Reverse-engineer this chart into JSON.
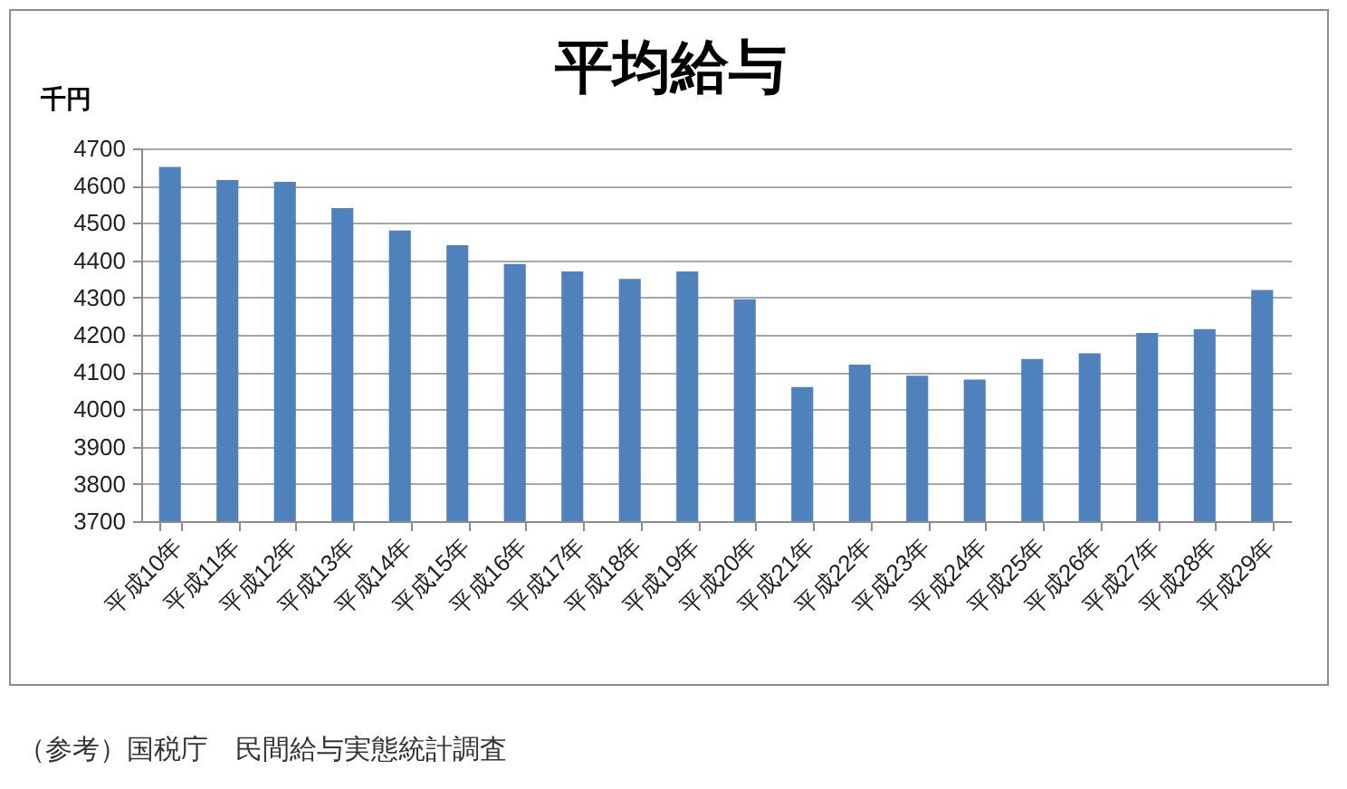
{
  "chart_data": {
    "type": "bar",
    "title": "平均給与",
    "ylabel": "千円",
    "categories": [
      "平成10年",
      "平成11年",
      "平成12年",
      "平成13年",
      "平成14年",
      "平成15年",
      "平成16年",
      "平成17年",
      "平成18年",
      "平成19年",
      "平成20年",
      "平成21年",
      "平成22年",
      "平成23年",
      "平成24年",
      "平成25年",
      "平成26年",
      "平成27年",
      "平成28年",
      "平成29年"
    ],
    "values": [
      4650,
      4615,
      4610,
      4540,
      4480,
      4440,
      4390,
      4370,
      4350,
      4370,
      4295,
      4060,
      4120,
      4090,
      4080,
      4135,
      4150,
      4205,
      4215,
      4320
    ],
    "color": "#4f81bd",
    "ylim": [
      3700,
      4700
    ],
    "yticks": [
      3700,
      3800,
      3900,
      4000,
      4100,
      4200,
      4300,
      4400,
      4500,
      4600,
      4700
    ],
    "grid": "y",
    "annotations": [
      "（参考）国税庁　民間給与実態統計調査"
    ]
  }
}
